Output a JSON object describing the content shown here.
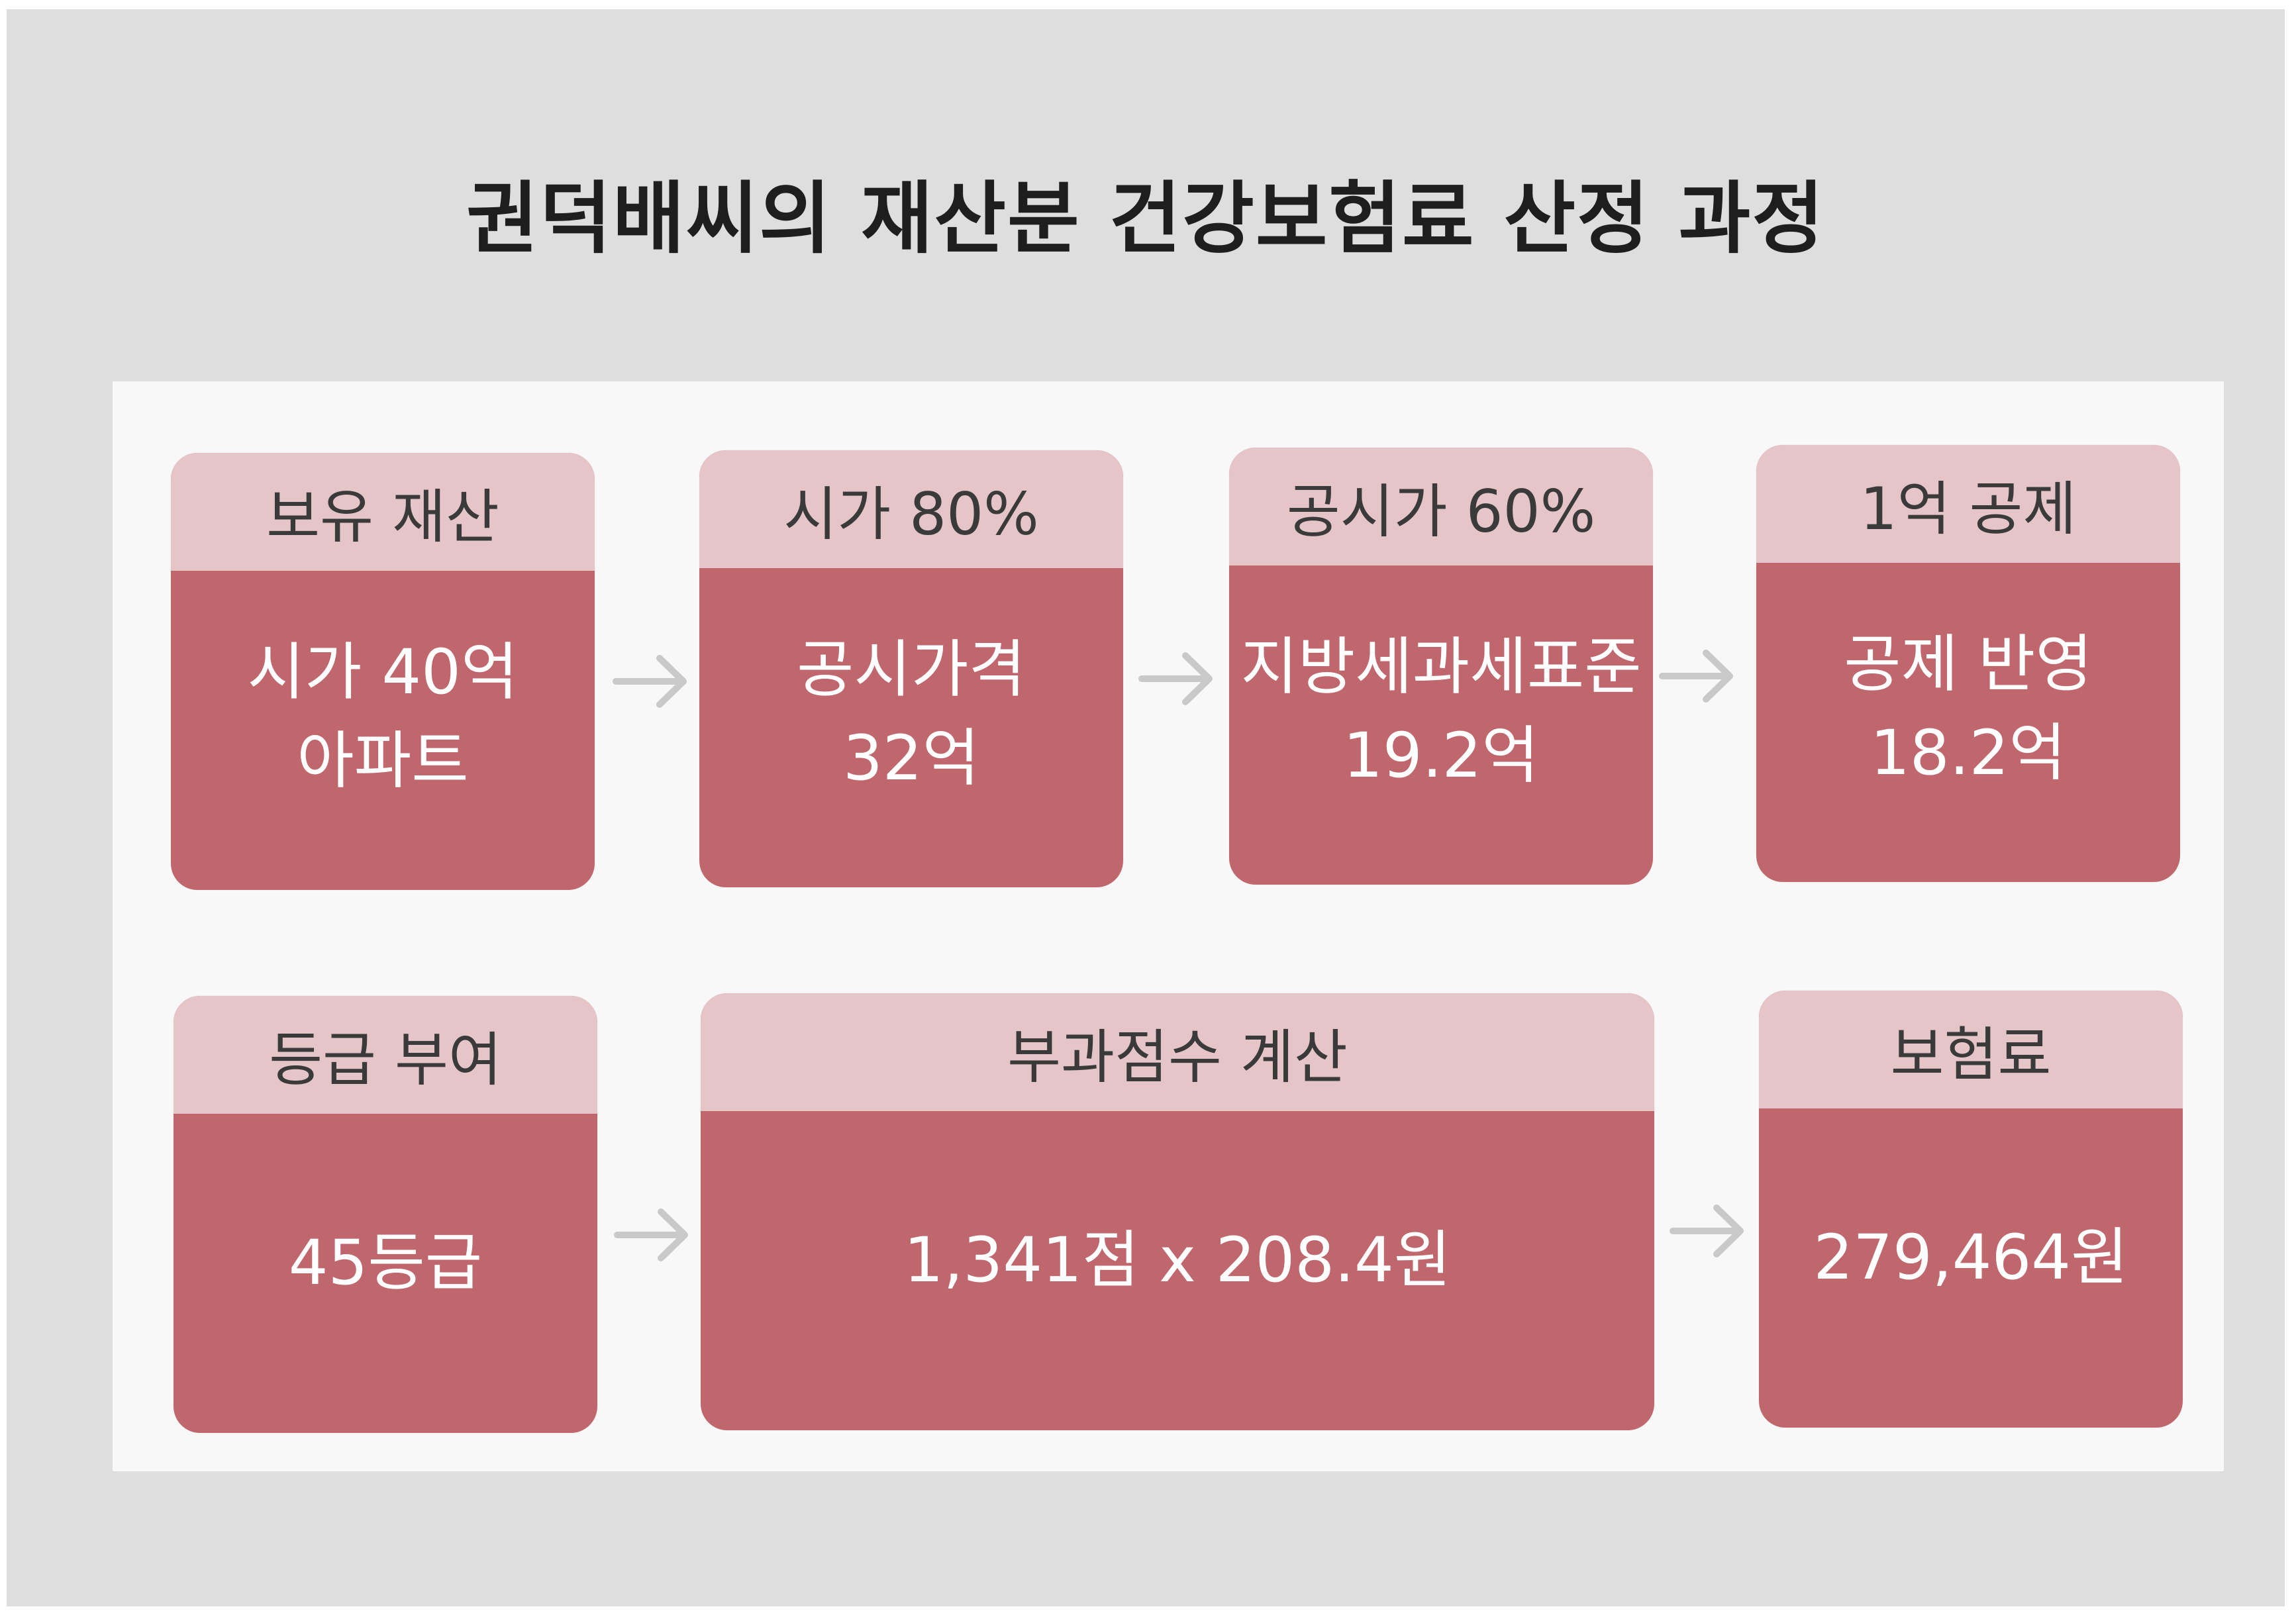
{
  "title": "권덕배씨의 재산분 건강보험료 산정 과정",
  "steps": [
    {
      "head": "보유 재산",
      "line1": "시가 40억",
      "line2": "아파트"
    },
    {
      "head": "시가 80%",
      "line1": "공시가격",
      "line2": "32억"
    },
    {
      "head": "공시가 60%",
      "line1": "지방세과세표준",
      "line2": "19.2억"
    },
    {
      "head": "1억 공제",
      "line1": "공제 반영",
      "line2": "18.2억"
    },
    {
      "head": "등급 부여",
      "line1": "45등급"
    },
    {
      "head": "부과점수 계산",
      "line1": "1,341점 x 208.4원"
    },
    {
      "head": "보험료",
      "line1": "279,464원"
    }
  ],
  "colors": {
    "frame": "#dedede",
    "panel": "#f8f8f8",
    "box_head": "#e6c5c9",
    "box_body": "#c0666d",
    "arrow": "#c9c9c9"
  },
  "icons": [
    "arrow-right-icon"
  ]
}
